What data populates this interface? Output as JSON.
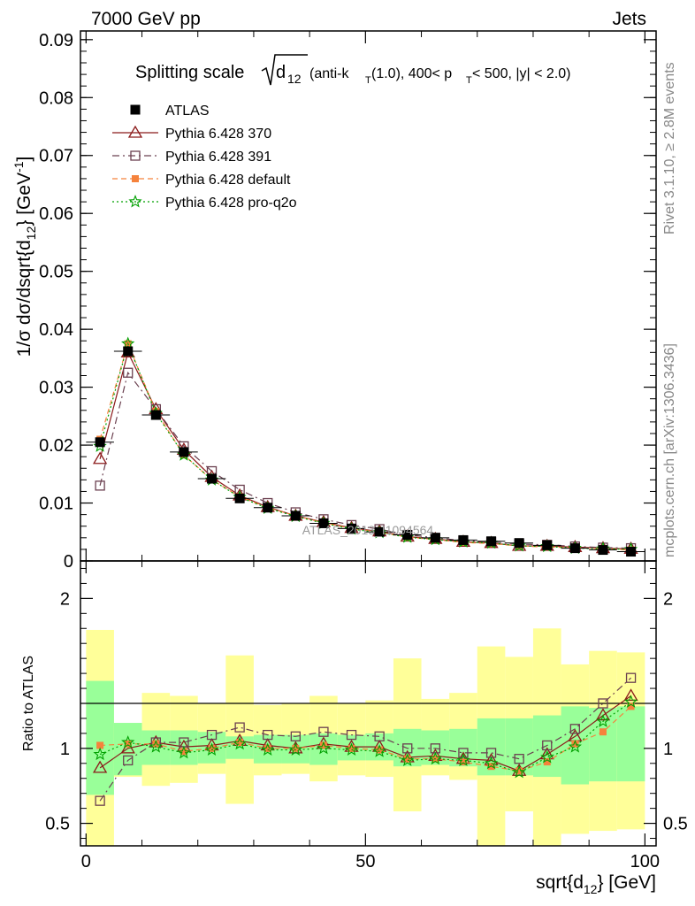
{
  "header": {
    "left": "7000 GeV pp",
    "right": "Jets"
  },
  "side_labels": {
    "rivet": "Rivet 3.1.10, ≥ 2.8M events",
    "mcplots": "mcplots.cern.ch [arXiv:1306.3436]"
  },
  "title": {
    "prefix": "Splitting scale",
    "sqrt_arg": "d",
    "sqrt_sub": "12",
    "rest_1": " (anti-k",
    "sub_T1": "T",
    "rest_2": "(1.0), 400< p",
    "sub_T2": "T",
    "rest_3": " < 500, |y| < 2.0)"
  },
  "watermark": "ATLAS_2013_I1094564",
  "colors": {
    "atlas": "#000000",
    "p370": "#8b1a1a",
    "p391": "#6b4050",
    "pdefault": "#f5823c",
    "pq2o": "#00a000",
    "band_inner": "#99ff99",
    "band_outer": "#ffff99"
  },
  "chart_data": [
    {
      "type": "line",
      "panel": "main",
      "ylabel": {
        "main": "1/σ dσ/dsqrt{d",
        "sub": "12",
        "tail": "} [GeV",
        "sup": "-1",
        "end": "]"
      },
      "xlim": [
        -1,
        102
      ],
      "ylim": [
        0,
        0.0915
      ],
      "y_ticks": [
        0,
        0.01,
        0.02,
        0.03,
        0.04,
        0.05,
        0.06,
        0.07,
        0.08,
        0.09
      ],
      "y_tick_labels": [
        "0",
        "0.01",
        "0.02",
        "0.03",
        "0.04",
        "0.05",
        "0.06",
        "0.07",
        "0.08",
        "0.09"
      ],
      "x": [
        2.5,
        7.5,
        12.5,
        17.5,
        22.5,
        27.5,
        32.5,
        37.5,
        42.5,
        47.5,
        52.5,
        57.5,
        62.5,
        67.5,
        72.5,
        77.5,
        82.5,
        87.5,
        92.5,
        97.5
      ],
      "bin_width": 5,
      "legend": [
        "ATLAS",
        "Pythia 6.428 370",
        "Pythia 6.428 391",
        "Pythia 6.428 default",
        "Pythia 6.428 pro-q2o"
      ],
      "series": [
        {
          "name": "ATLAS",
          "key": "atlas",
          "marker": "filled-square",
          "values": [
            0.0205,
            0.0362,
            0.0252,
            0.0188,
            0.0142,
            0.0108,
            0.0092,
            0.0078,
            0.0065,
            0.0056,
            0.005,
            0.0045,
            0.004,
            0.0036,
            0.0034,
            0.0031,
            0.0027,
            0.0022,
            0.0019,
            0.0016
          ]
        },
        {
          "name": "Pythia 6.428 370",
          "key": "p370",
          "marker": "open-triangle",
          "line": "solid",
          "values": [
            0.0176,
            0.036,
            0.0262,
            0.0192,
            0.0145,
            0.0113,
            0.0093,
            0.0078,
            0.0067,
            0.0057,
            0.0051,
            0.0042,
            0.0038,
            0.0033,
            0.0031,
            0.0026,
            0.0026,
            0.0024,
            0.0022,
            0.0021
          ]
        },
        {
          "name": "Pythia 6.428 391",
          "key": "p391",
          "marker": "open-square",
          "line": "dashdot",
          "values": [
            0.013,
            0.0325,
            0.0262,
            0.0198,
            0.0155,
            0.0123,
            0.01,
            0.0084,
            0.0072,
            0.0062,
            0.0055,
            0.0045,
            0.004,
            0.0035,
            0.0033,
            0.0029,
            0.0028,
            0.0025,
            0.0023,
            0.0022
          ]
        },
        {
          "name": "Pythia 6.428 default",
          "key": "pdefault",
          "marker": "filled-small-square",
          "line": "dashed",
          "values": [
            0.021,
            0.0375,
            0.0258,
            0.0183,
            0.014,
            0.0111,
            0.0092,
            0.0078,
            0.0066,
            0.0056,
            0.005,
            0.0041,
            0.0037,
            0.0032,
            0.003,
            0.0026,
            0.0024,
            0.0023,
            0.0021,
            0.0019
          ]
        },
        {
          "name": "Pythia 6.428 pro-q2o",
          "key": "pq2o",
          "marker": "star",
          "line": "dotted",
          "values": [
            0.0198,
            0.0375,
            0.0255,
            0.0183,
            0.014,
            0.011,
            0.0091,
            0.0077,
            0.0065,
            0.0055,
            0.0049,
            0.0041,
            0.0037,
            0.0033,
            0.0031,
            0.0026,
            0.0025,
            0.0022,
            0.0021,
            0.002
          ]
        }
      ]
    },
    {
      "type": "line",
      "panel": "ratio",
      "ylabel": "Ratio to ATLAS",
      "xlabel": {
        "main": "sqrt{d",
        "sub": "12",
        "tail": "} [GeV]"
      },
      "xlim": [
        -1,
        102
      ],
      "ylim": [
        0.35,
        2.25
      ],
      "x_ticks": [
        0,
        50,
        100
      ],
      "x_tick_labels": [
        "0",
        "50",
        "100"
      ],
      "y_ticks": [
        0.5,
        1,
        2
      ],
      "y_tick_labels": [
        "0.5",
        "1",
        "2"
      ],
      "x": [
        2.5,
        7.5,
        12.5,
        17.5,
        22.5,
        27.5,
        32.5,
        37.5,
        42.5,
        47.5,
        52.5,
        57.5,
        62.5,
        67.5,
        72.5,
        77.5,
        82.5,
        87.5,
        92.5,
        97.5
      ],
      "bin_width": 5,
      "band_inner": {
        "low": [
          0.69,
          0.82,
          0.89,
          0.89,
          0.9,
          0.93,
          0.9,
          0.9,
          0.89,
          0.92,
          0.92,
          0.88,
          0.89,
          0.88,
          0.82,
          0.82,
          0.81,
          0.76,
          0.78,
          0.78
        ],
        "high": [
          1.45,
          1.17,
          1.12,
          1.12,
          1.11,
          1.08,
          1.09,
          1.09,
          1.1,
          1.09,
          1.1,
          1.13,
          1.12,
          1.13,
          1.2,
          1.2,
          1.22,
          1.28,
          1.27,
          1.28
        ]
      },
      "band_outer": {
        "low": [
          0.35,
          0.81,
          0.75,
          0.77,
          0.83,
          0.63,
          0.82,
          0.83,
          0.78,
          0.82,
          0.81,
          0.58,
          0.82,
          0.79,
          0.35,
          0.58,
          0.35,
          0.43,
          0.45,
          0.46
        ],
        "high": [
          1.79,
          1.15,
          1.37,
          1.35,
          1.3,
          1.62,
          1.29,
          1.3,
          1.35,
          1.3,
          1.32,
          1.6,
          1.33,
          1.37,
          1.68,
          1.61,
          1.8,
          1.56,
          1.65,
          1.64
        ]
      },
      "series": [
        {
          "name": "Pythia 6.428 370",
          "key": "p370",
          "marker": "open-triangle",
          "line": "solid",
          "values": [
            0.87,
            1.0,
            1.04,
            1.01,
            1.02,
            1.05,
            1.02,
            1.0,
            1.03,
            1.01,
            1.01,
            0.94,
            0.95,
            0.93,
            0.92,
            0.85,
            0.96,
            1.08,
            1.22,
            1.35
          ]
        },
        {
          "name": "Pythia 6.428 391",
          "key": "p391",
          "marker": "open-square",
          "line": "dashdot",
          "values": [
            0.65,
            0.92,
            1.04,
            1.04,
            1.09,
            1.14,
            1.09,
            1.08,
            1.11,
            1.09,
            1.08,
            1.0,
            1.0,
            0.97,
            0.97,
            0.93,
            1.02,
            1.13,
            1.3,
            1.47
          ]
        },
        {
          "name": "Pythia 6.428 default",
          "key": "pdefault",
          "marker": "filled-small-square",
          "line": "dashed",
          "values": [
            1.02,
            1.03,
            1.03,
            0.98,
            1.0,
            1.04,
            1.0,
            1.0,
            1.02,
            1.0,
            0.99,
            0.93,
            0.93,
            0.91,
            0.88,
            0.85,
            0.91,
            1.03,
            1.11,
            1.28
          ]
        },
        {
          "name": "Pythia 6.428 pro-q2o",
          "key": "pq2o",
          "marker": "star",
          "line": "dotted",
          "values": [
            0.96,
            1.04,
            1.01,
            0.97,
            0.99,
            1.03,
            0.99,
            0.99,
            1.0,
            0.99,
            0.98,
            0.92,
            0.93,
            0.92,
            0.9,
            0.84,
            0.94,
            1.01,
            1.18,
            1.31
          ]
        }
      ]
    }
  ]
}
